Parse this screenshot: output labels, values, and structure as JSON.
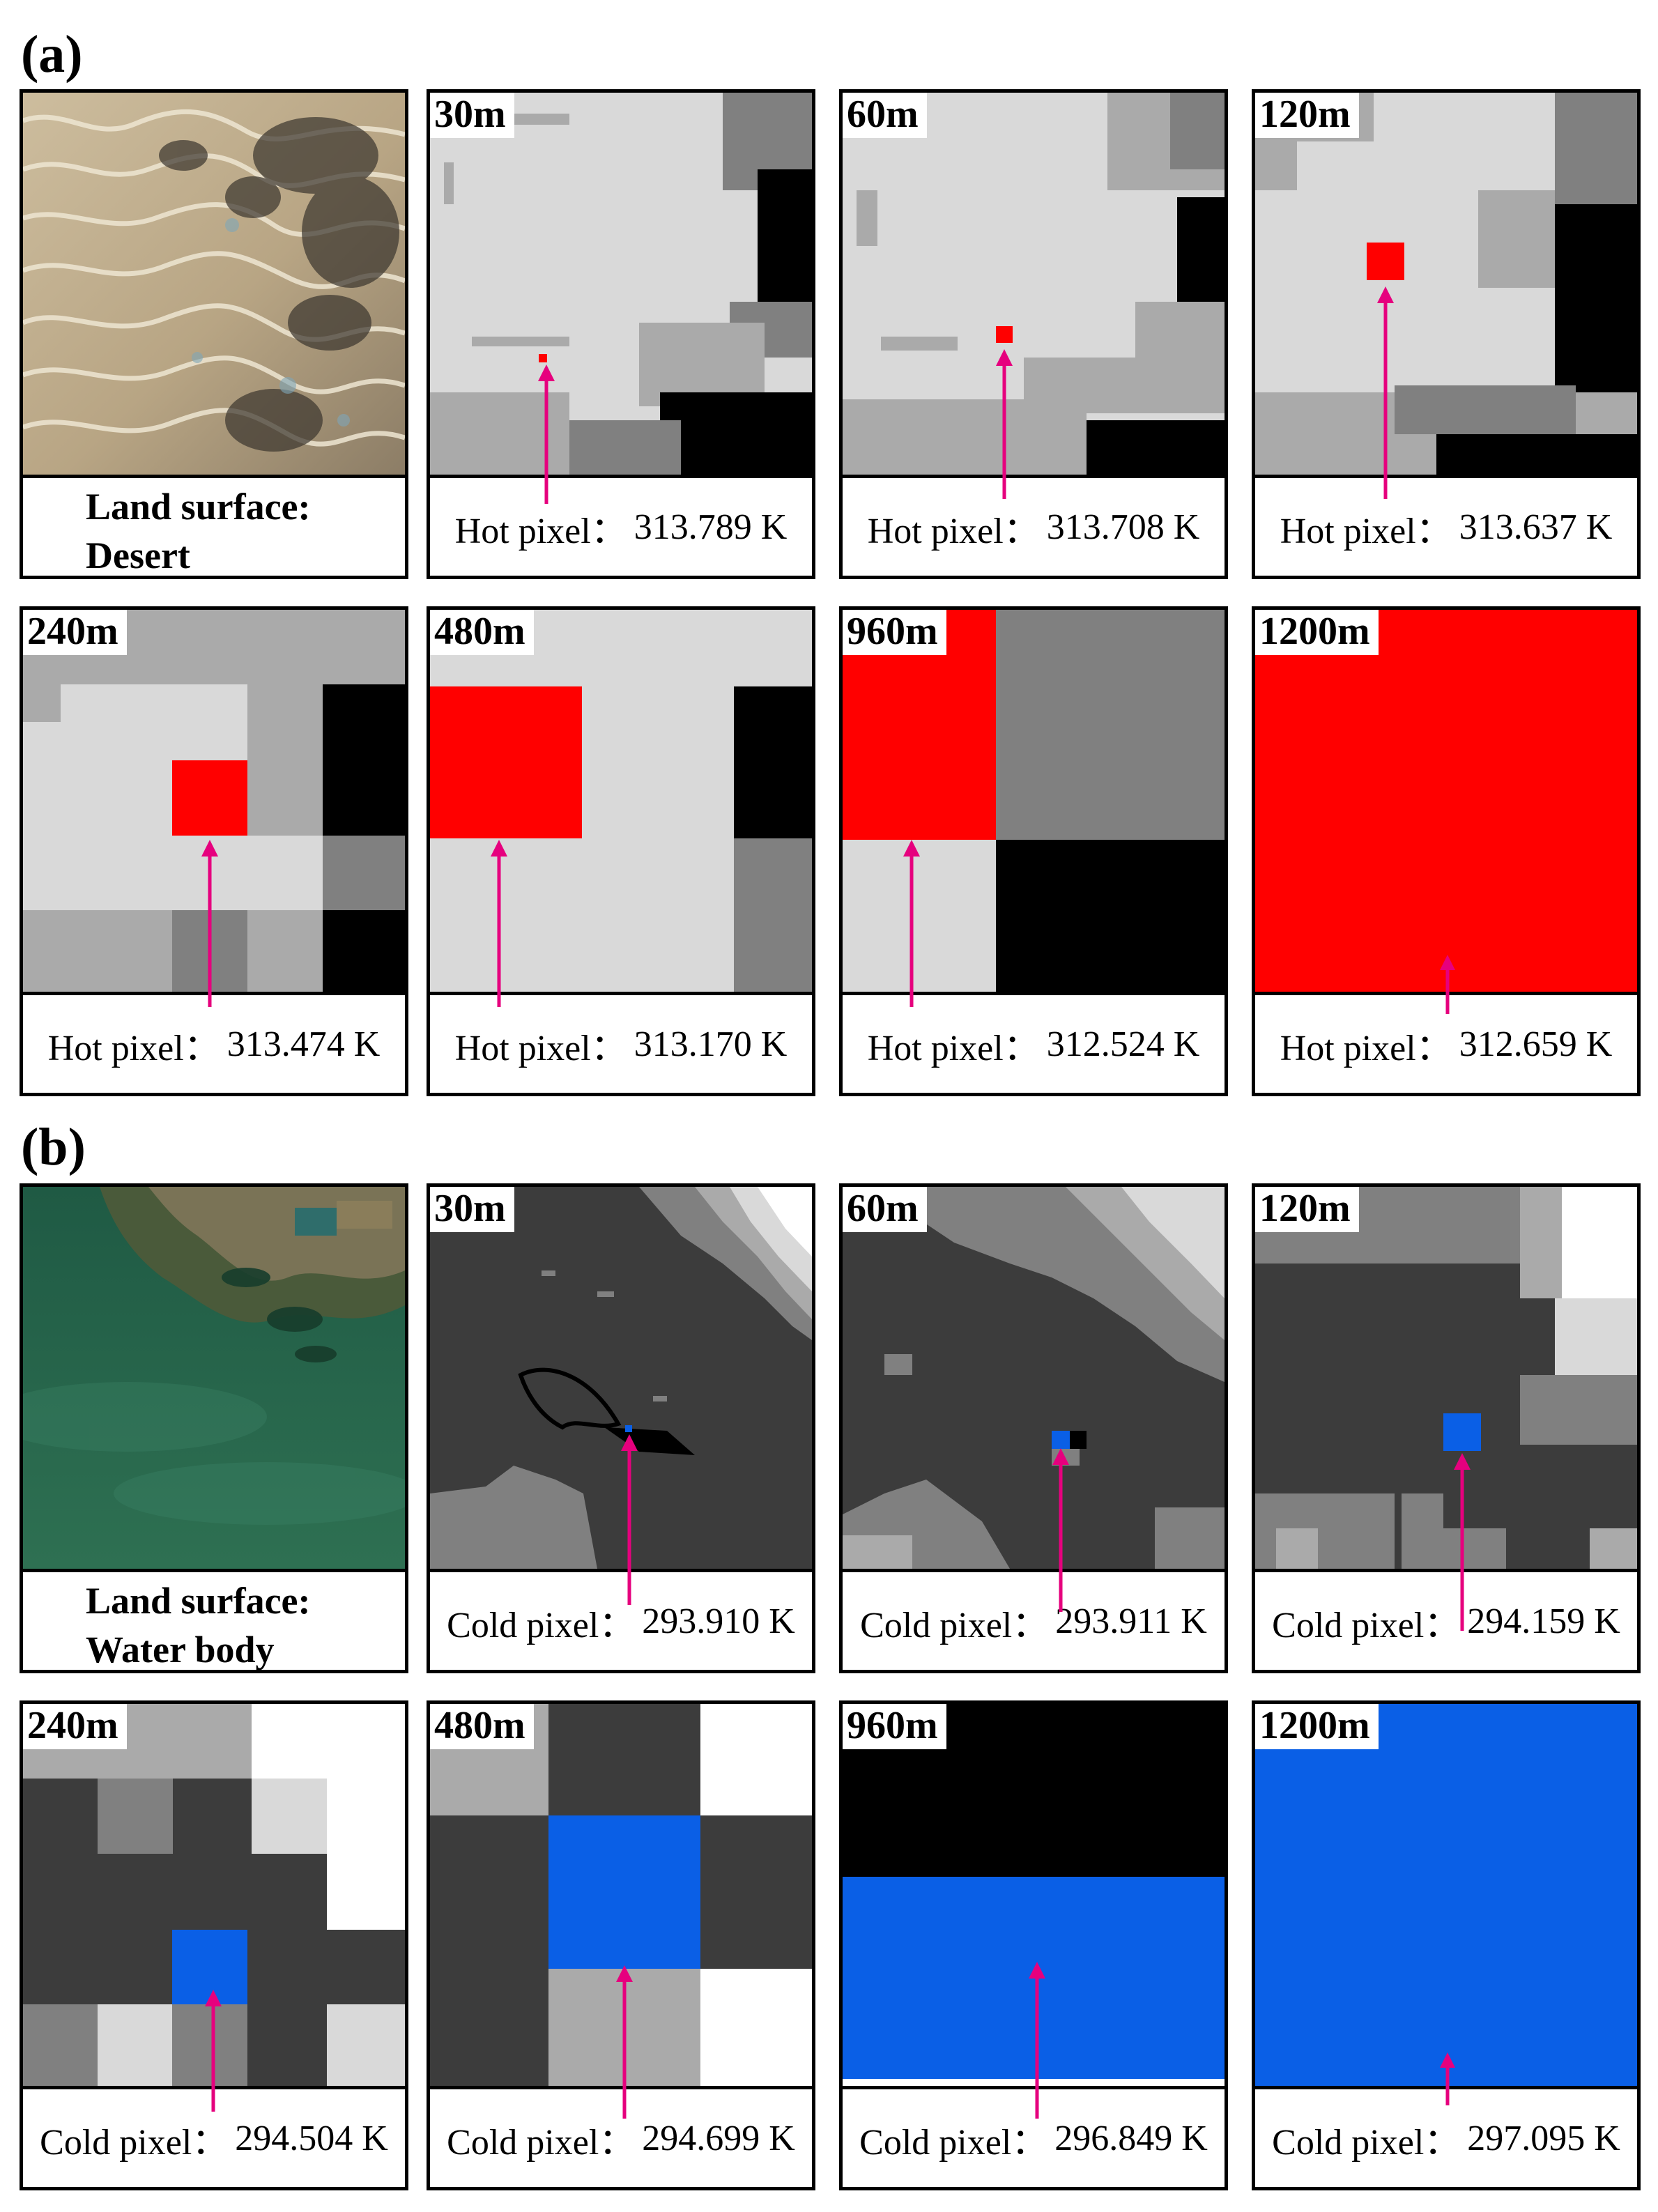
{
  "sections": [
    {
      "label": "(a)",
      "land": {
        "line1": "Land surface:",
        "line2": "Desert"
      },
      "panels": [
        {
          "res": "30m",
          "caption": "Hot pixel：",
          "value": "313.789 K"
        },
        {
          "res": "60m",
          "caption": "Hot pixel：",
          "value": "313.708 K"
        },
        {
          "res": "120m",
          "caption": "Hot pixel：",
          "value": "313.637 K"
        },
        {
          "res": "240m",
          "caption": "Hot pixel：",
          "value": "313.474 K"
        },
        {
          "res": "480m",
          "caption": "Hot pixel：",
          "value": "313.170 K"
        },
        {
          "res": "960m",
          "caption": "Hot pixel：",
          "value": "312.524 K"
        },
        {
          "res": "1200m",
          "caption": "Hot pixel：",
          "value": "312.659 K"
        }
      ]
    },
    {
      "label": "(b)",
      "land": {
        "line1": "Land surface:",
        "line2": "Water body"
      },
      "panels": [
        {
          "res": "30m",
          "caption": "Cold pixel：",
          "value": "293.910 K"
        },
        {
          "res": "60m",
          "caption": "Cold pixel：",
          "value": "293.911 K"
        },
        {
          "res": "120m",
          "caption": "Cold pixel：",
          "value": "294.159 K"
        },
        {
          "res": "240m",
          "caption": "Cold pixel：",
          "value": "294.504 K"
        },
        {
          "res": "480m",
          "caption": "Cold pixel：",
          "value": "294.699 K"
        },
        {
          "res": "960m",
          "caption": "Cold pixel：",
          "value": "296.849 K"
        },
        {
          "res": "1200m",
          "caption": "Cold pixel：",
          "value": "297.095 K"
        }
      ]
    }
  ],
  "colors": {
    "hot": "#ff0000",
    "cold": "#0a5fe6",
    "arrow": "#e6007e",
    "gray_levels": [
      "#000000",
      "#3c3c3c",
      "#808080",
      "#aaaaaa",
      "#d9d9d9",
      "#ffffff"
    ]
  }
}
